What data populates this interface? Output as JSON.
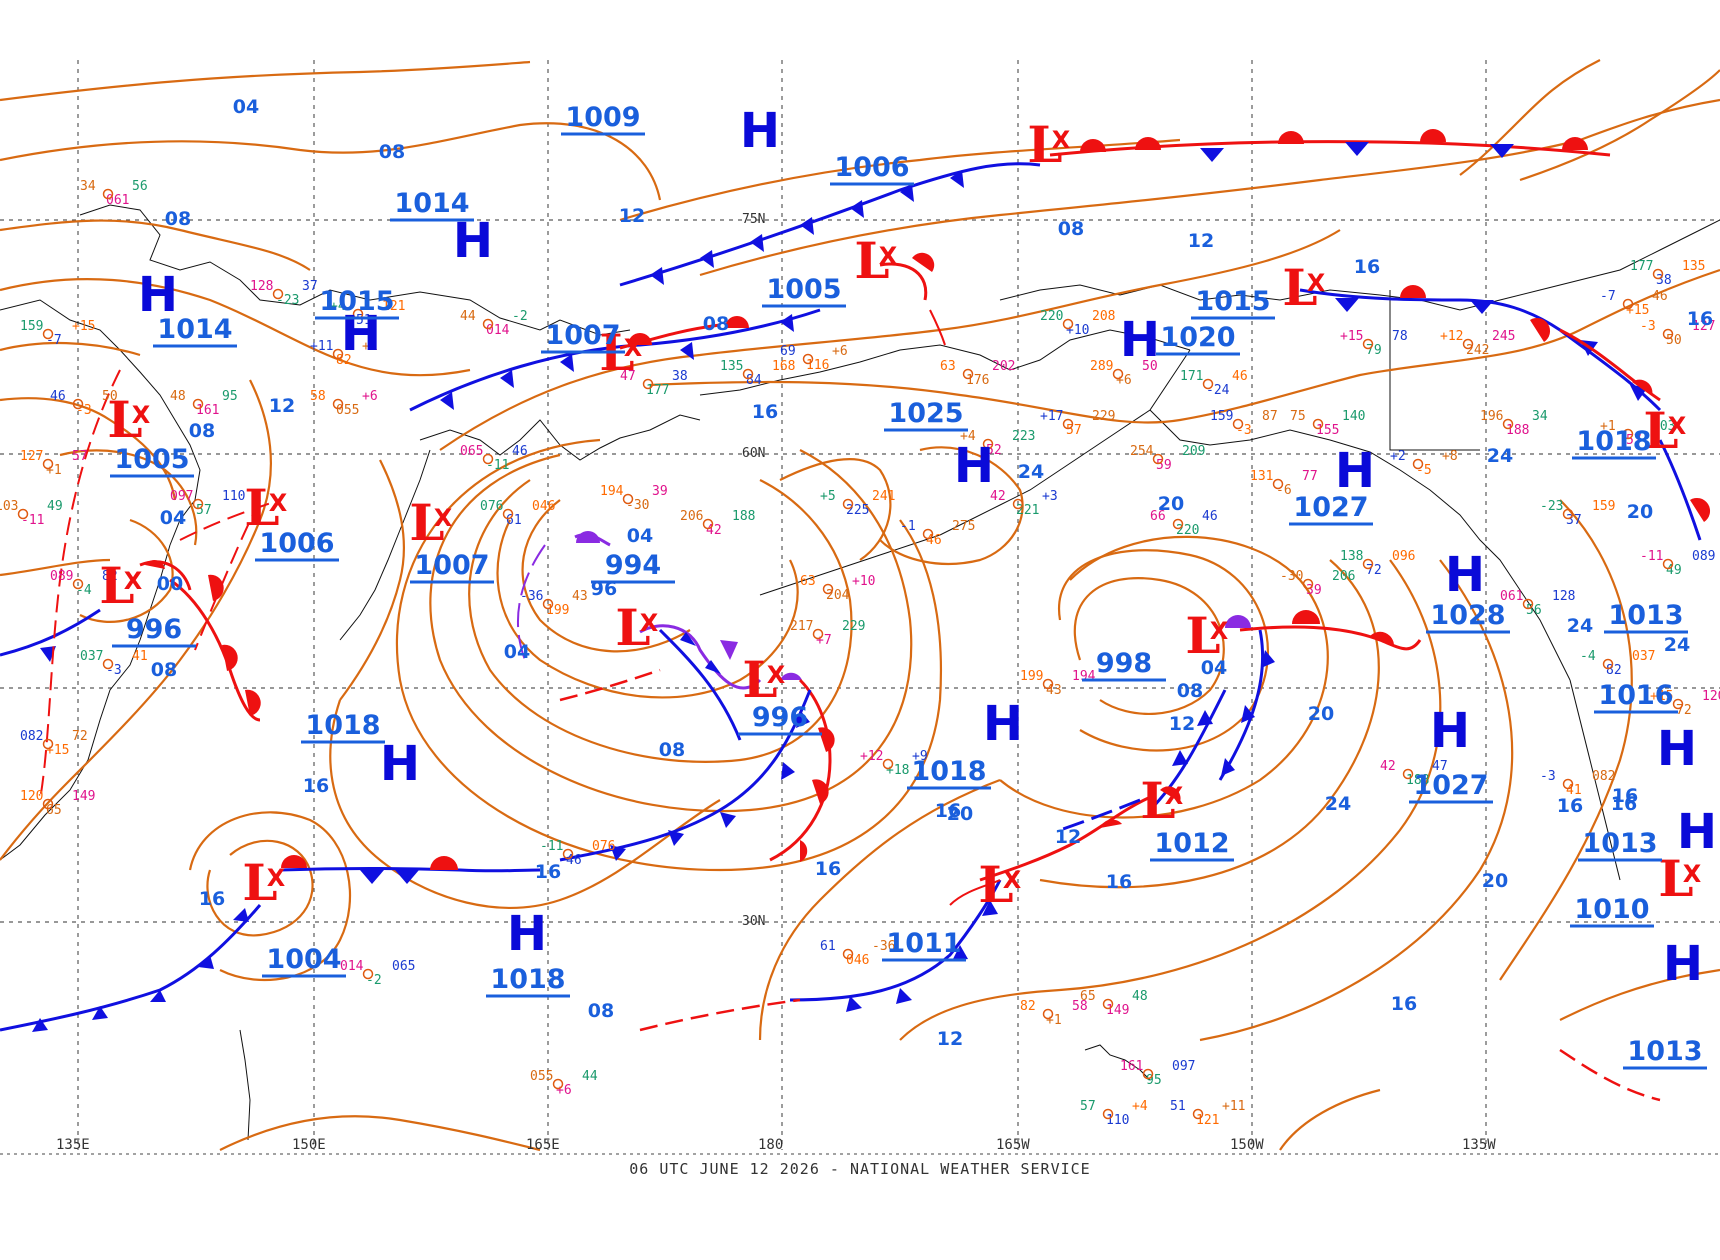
{
  "caption": "06 UTC JUNE 12 2026 - NATIONAL WEATHER SERVICE",
  "axis": {
    "longitudes": [
      "135E",
      "150E",
      "165E",
      "180",
      "165W",
      "150W",
      "135W"
    ],
    "latitudes": [
      "75N",
      "60N",
      "30N"
    ]
  },
  "colors": {
    "isobar": "#d86a12",
    "high_center": "#0a0ad8",
    "low_center": "#ee1111",
    "pressure_label": "#1a5fdc",
    "cold_front": "#1010e0",
    "warm_front": "#ee1111",
    "occluded_front": "#8a2be2",
    "coastline": "#111111",
    "grid": "#5a5a5a"
  },
  "pressure_labels": [
    "1009",
    "1006",
    "1014",
    "1015",
    "1014",
    "1005",
    "1007",
    "1005",
    "1015",
    "1020",
    "1025",
    "1018",
    "1006",
    "1007",
    "994",
    "1027",
    "996",
    "1028",
    "998",
    "1013",
    "1018",
    "1016",
    "996",
    "1018",
    "1027",
    "1012",
    "1013",
    "1004",
    "1018",
    "1011",
    "1010",
    "1013"
  ],
  "isobar_labels": [
    "04",
    "08",
    "08",
    "12",
    "08",
    "12",
    "08",
    "08",
    "04",
    "04",
    "00",
    "08",
    "04",
    "96",
    "08",
    "16",
    "16",
    "16",
    "12",
    "16",
    "16",
    "16",
    "16",
    "20",
    "24",
    "24",
    "20",
    "08",
    "04",
    "12",
    "12",
    "16",
    "20",
    "24",
    "20",
    "16",
    "24",
    "16",
    "20",
    "16",
    "12",
    "08",
    "24",
    "16",
    "16"
  ],
  "symbols": {
    "high": "H",
    "low": "L",
    "low_marker": "X"
  },
  "station_sample": [
    "34",
    "061",
    "56",
    "128",
    "-23",
    "37",
    "159",
    "-7",
    "+15",
    "46",
    "-3",
    "50",
    "127",
    "+1",
    "57",
    "103",
    "-11",
    "49",
    "089",
    "-4",
    "82",
    "037",
    "-3",
    "41",
    "082",
    "+15",
    "72",
    "120",
    "65",
    "149",
    "48",
    "161",
    "95",
    "097",
    "57",
    "110",
    "+4",
    "51",
    "121",
    "+11",
    "82",
    "+1",
    "58",
    "055",
    "+6",
    "44",
    "014",
    "-2",
    "065",
    "-11",
    "46",
    "076",
    "61",
    "046",
    "-36",
    "199",
    "43",
    "194",
    "-30",
    "39",
    "206",
    "42",
    "188",
    "47",
    "177",
    "38",
    "135",
    "84",
    "168",
    "69",
    "116",
    "+6",
    "63",
    "204",
    "+10",
    "217",
    "+7",
    "229",
    "+12",
    "+18",
    "+9",
    "+5",
    "225",
    "241",
    "-1",
    "46",
    "275",
    "63",
    "176",
    "202",
    "+4",
    "52",
    "223",
    "42",
    "221",
    "+3",
    "220",
    "+10",
    "208",
    "+17",
    "57",
    "229",
    "289",
    "+6",
    "50",
    "254",
    "59",
    "209",
    "66",
    "220",
    "46",
    "171",
    "-24",
    "46",
    "159",
    "-3",
    "87",
    "131",
    "-6",
    "77",
    "75",
    "155",
    "140",
    "+15",
    "79",
    "78",
    "138",
    "72",
    "096",
    "+2",
    "-5",
    "+8",
    "+12",
    "242",
    "245",
    "196",
    "188"
  ]
}
